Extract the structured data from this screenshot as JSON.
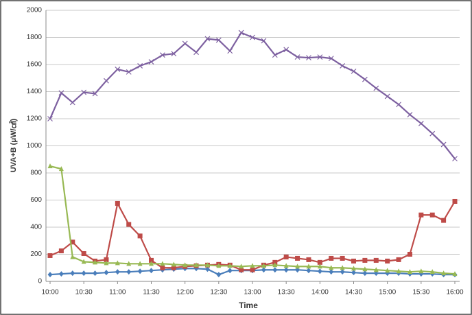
{
  "chart_data": {
    "type": "line",
    "x_label": "Time",
    "y_label": "UVA+B (μW/㎠)",
    "categories": [
      "10:00",
      null,
      null,
      "10:30",
      null,
      null,
      "11:00",
      null,
      null,
      "11:30",
      null,
      null,
      "12:00",
      null,
      null,
      "12:30",
      null,
      null,
      "13:00",
      null,
      null,
      "13:30",
      null,
      null,
      "14:00",
      null,
      null,
      "14:30",
      null,
      null,
      "15:00",
      null,
      null,
      "15:30",
      null,
      null,
      "16:00"
    ],
    "ylim": [
      0,
      2000
    ],
    "yticks": [
      0,
      200,
      400,
      600,
      800,
      1000,
      1200,
      1400,
      1600,
      1800,
      2000
    ],
    "grid": true,
    "series": [
      {
        "color": "#4a7ebb",
        "marker": "diamond",
        "values": [
          50,
          55,
          60,
          60,
          60,
          65,
          70,
          70,
          75,
          80,
          85,
          90,
          95,
          95,
          90,
          50,
          80,
          80,
          80,
          85,
          85,
          85,
          85,
          80,
          75,
          70,
          70,
          65,
          60,
          60,
          60,
          60,
          55,
          55,
          55,
          50,
          50
        ]
      },
      {
        "color": "#be4b48",
        "marker": "square",
        "values": [
          190,
          225,
          290,
          205,
          150,
          160,
          575,
          420,
          335,
          155,
          100,
          100,
          110,
          115,
          120,
          125,
          120,
          85,
          85,
          120,
          140,
          180,
          170,
          160,
          140,
          170,
          170,
          150,
          155,
          155,
          150,
          160,
          200,
          490,
          490,
          450,
          590
        ]
      },
      {
        "color": "#98b954",
        "marker": "triangle",
        "values": [
          850,
          830,
          180,
          145,
          140,
          135,
          135,
          130,
          130,
          130,
          130,
          125,
          120,
          120,
          120,
          115,
          115,
          110,
          115,
          115,
          120,
          115,
          110,
          110,
          110,
          100,
          100,
          95,
          90,
          85,
          80,
          75,
          70,
          75,
          70,
          60,
          55
        ]
      },
      {
        "color": "#7d60a0",
        "marker": "x",
        "values": [
          1200,
          1390,
          1320,
          1395,
          1385,
          1480,
          1565,
          1545,
          1590,
          1620,
          1670,
          1680,
          1755,
          1690,
          1790,
          1780,
          1700,
          1835,
          1800,
          1775,
          1670,
          1710,
          1655,
          1650,
          1655,
          1645,
          1590,
          1550,
          1490,
          1425,
          1365,
          1305,
          1230,
          1165,
          1090,
          1010,
          905
        ]
      }
    ]
  }
}
